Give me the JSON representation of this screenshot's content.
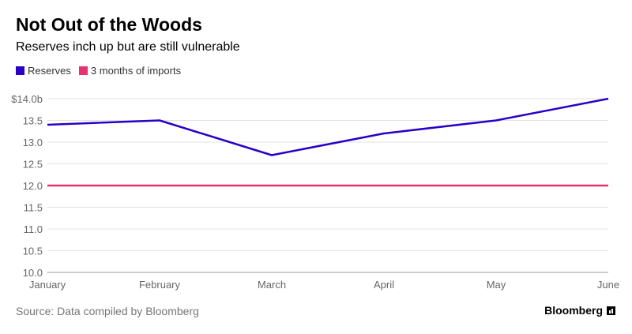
{
  "header": {
    "title": "Not Out of the Woods",
    "subtitle": "Reserves inch up but are still vulnerable"
  },
  "legend": {
    "items": [
      {
        "label": "Reserves",
        "color": "#2a00c8"
      },
      {
        "label": "3 months of imports",
        "color": "#e8326e"
      }
    ]
  },
  "footer": {
    "source": "Source: Data compiled by Bloomberg",
    "brand": "Bloomberg"
  },
  "chart_data": {
    "type": "line",
    "title": "Not Out of the Woods",
    "subtitle": "Reserves inch up but are still vulnerable",
    "categories": [
      "January",
      "February",
      "March",
      "April",
      "May",
      "June"
    ],
    "series": [
      {
        "name": "Reserves",
        "color": "#2a00c8",
        "values": [
          13.4,
          13.5,
          12.7,
          13.2,
          13.5,
          14.0
        ]
      },
      {
        "name": "3 months of imports",
        "color": "#e8326e",
        "values": [
          12.0,
          12.0,
          12.0,
          12.0,
          12.0,
          12.0
        ]
      }
    ],
    "yticks": [
      10.0,
      10.5,
      11.0,
      11.5,
      12.0,
      12.5,
      13.0,
      13.5,
      14.0
    ],
    "ytick_labels": [
      "10.0",
      "10.5",
      "11.0",
      "11.5",
      "12.0",
      "12.5",
      "13.0",
      "13.5",
      "$14.0b"
    ],
    "ylim": [
      10.0,
      14.0
    ],
    "xlabel": "",
    "ylabel": "",
    "grid": true,
    "legend_position": "top-left"
  }
}
